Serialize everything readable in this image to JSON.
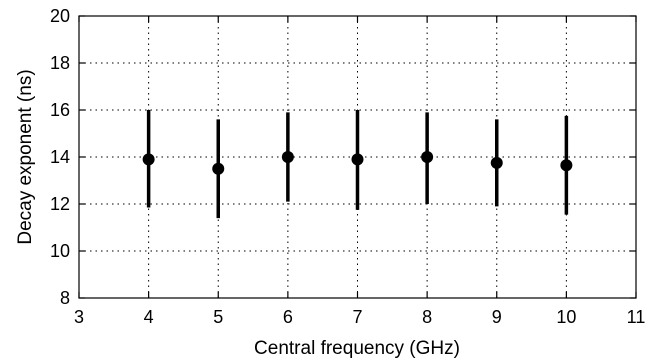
{
  "chart_data": {
    "type": "scatter",
    "title": "",
    "xlabel": "Central frequency (GHz)",
    "ylabel": "Decay exponent (ns)",
    "xlim": [
      3,
      11
    ],
    "ylim": [
      8,
      20
    ],
    "xticks": [
      3,
      4,
      5,
      6,
      7,
      8,
      9,
      10,
      11
    ],
    "yticks": [
      8,
      10,
      12,
      14,
      16,
      18,
      20
    ],
    "grid": true,
    "legend": "none",
    "series": [
      {
        "x": [
          4,
          5,
          6,
          7,
          8,
          9,
          10
        ],
        "y": [
          13.9,
          13.5,
          14.0,
          13.9,
          14.0,
          13.75,
          13.65
        ],
        "y_low": [
          11.85,
          11.4,
          12.1,
          11.75,
          12.0,
          11.9,
          11.55
        ],
        "y_high": [
          16.0,
          15.6,
          15.9,
          16.0,
          15.9,
          15.6,
          15.75
        ]
      }
    ]
  }
}
